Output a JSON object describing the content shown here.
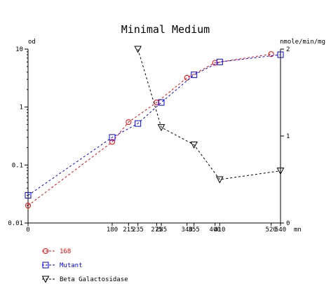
{
  "colors": {
    "series_168": "#ff0000",
    "series_mutant": "#0000ff",
    "series_beta": "#000000",
    "axis": "#000000"
  },
  "chart_data": {
    "type": "line",
    "title": "Minimal Medium",
    "xlabel": "mn",
    "ylabel_left": "od",
    "ylabel_right": "nmole/min/mg",
    "x_ticks": [
      0,
      180,
      215,
      235,
      275,
      285,
      340,
      355,
      400,
      410,
      520,
      540
    ],
    "x_tick_labels": [
      "0",
      "180",
      "215",
      "235",
      "275",
      "285",
      "340",
      "355",
      "400",
      "410",
      "520",
      "540"
    ],
    "xlim": [
      0,
      540
    ],
    "y_left": {
      "scale": "log",
      "range": [
        0.01,
        10
      ],
      "ticks": [
        0.01,
        0.1,
        1,
        10
      ],
      "tick_labels": [
        "0.01",
        "0.1",
        "1",
        "10"
      ]
    },
    "y_right": {
      "scale": "linear",
      "range": [
        0,
        2
      ],
      "ticks": [
        0,
        1,
        2
      ],
      "tick_labels": [
        "0",
        "1",
        "2"
      ]
    },
    "series": [
      {
        "name": "168",
        "axis": "left",
        "marker": "circle",
        "x": [
          0,
          180,
          215,
          275,
          340,
          400,
          520
        ],
        "y": [
          0.02,
          0.25,
          0.55,
          1.2,
          3.2,
          5.8,
          8.2
        ]
      },
      {
        "name": "Mutant",
        "axis": "left",
        "marker": "square",
        "x": [
          0,
          180,
          235,
          285,
          355,
          410,
          540
        ],
        "y": [
          0.03,
          0.3,
          0.52,
          1.2,
          3.6,
          6.0,
          8.0
        ]
      },
      {
        "name": "Beta Galactosidase",
        "axis": "right",
        "marker": "triangle-down",
        "x": [
          235,
          285,
          355,
          410,
          540
        ],
        "y": [
          2.0,
          1.1,
          0.9,
          0.5,
          0.6
        ]
      }
    ],
    "legend": {
      "placement": "bottom-left"
    },
    "grid": false
  }
}
